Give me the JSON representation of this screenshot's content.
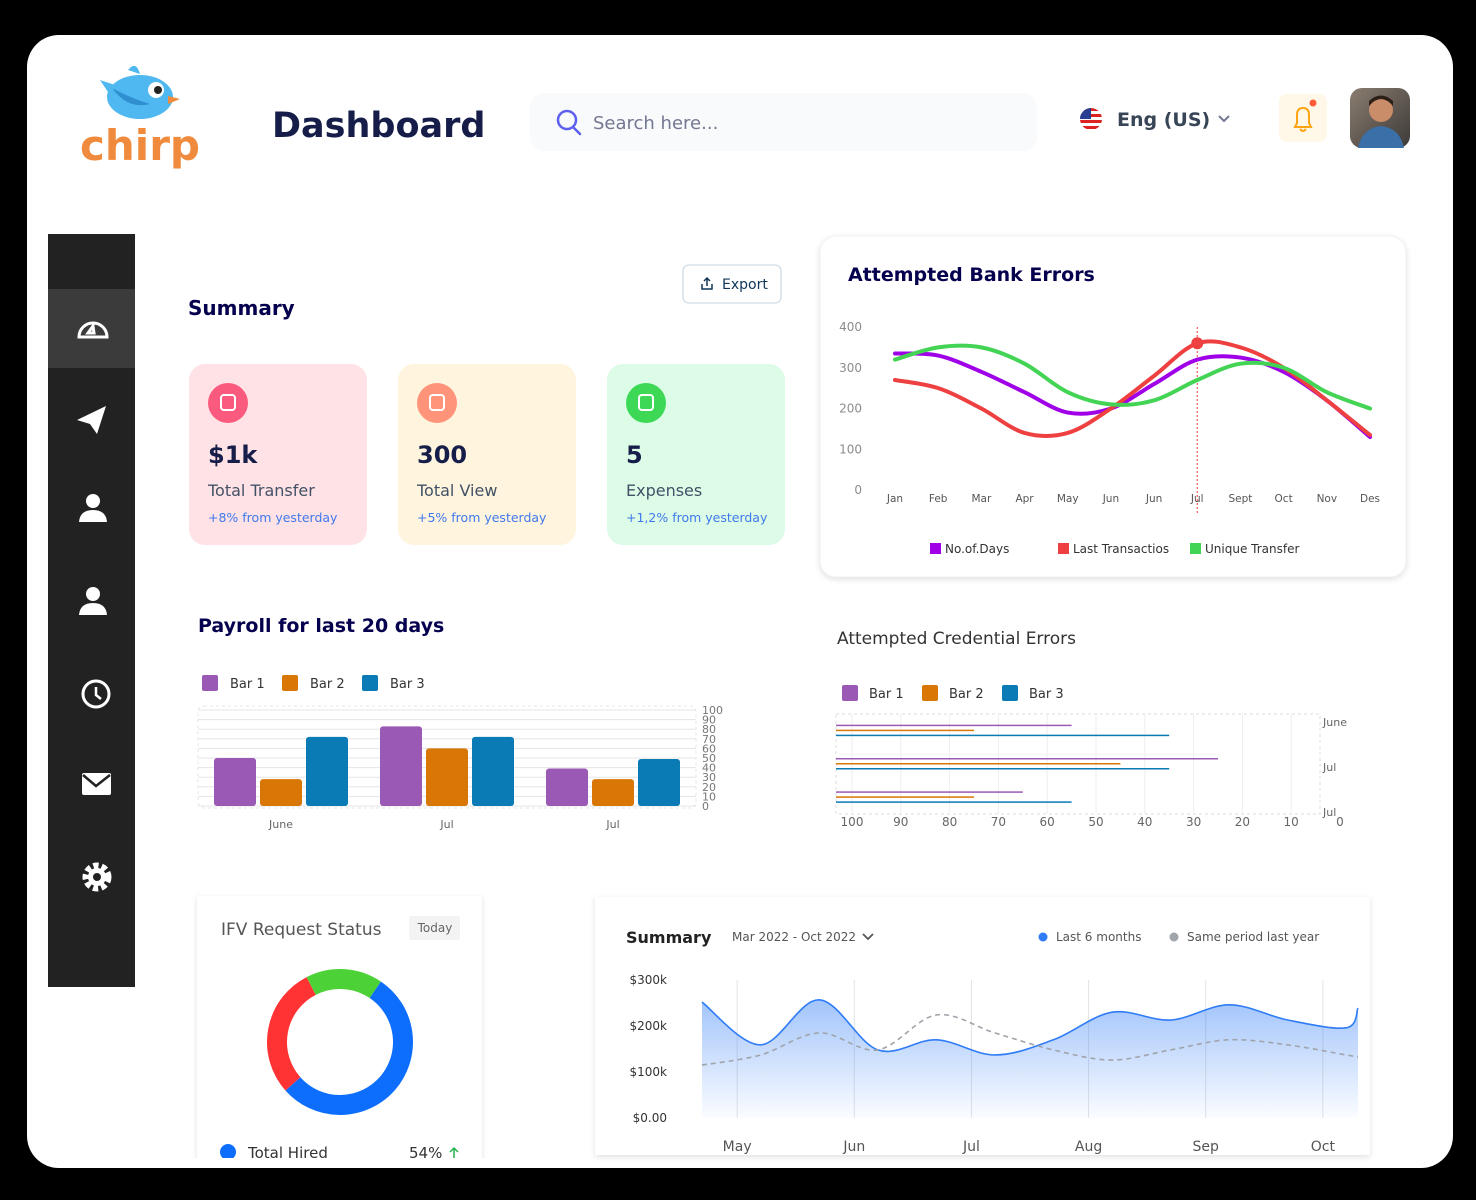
{
  "header": {
    "logo": "chirp",
    "title": "Dashboard",
    "search_placeholder": "Search here...",
    "language": "Eng (US)"
  },
  "summary": {
    "title": "Summary",
    "export": "Export",
    "cards": [
      {
        "value": "$1k",
        "label": "Total Transfer",
        "change": "+8% from yesterday"
      },
      {
        "value": "300",
        "label": "Total View",
        "change": "+5% from yesterday"
      },
      {
        "value": "5",
        "label": "Expenses",
        "change": "+1,2% from yesterday"
      }
    ]
  },
  "bank_errors": {
    "type": "line",
    "title": "Attempted Bank Errors",
    "categories": [
      "Jan",
      "Feb",
      "Mar",
      "Apr",
      "May",
      "Jun",
      "Jun",
      "Jul",
      "Sept",
      "Oct",
      "Nov",
      "Des"
    ],
    "ylim": [
      0,
      400
    ],
    "yticks": [
      0,
      100,
      200,
      300,
      400
    ],
    "series": [
      {
        "name": "No.of.Days",
        "color": "#a000e8",
        "values": [
          335,
          330,
          290,
          240,
          190,
          200,
          260,
          320,
          325,
          290,
          220,
          130
        ]
      },
      {
        "name": "Last Transactios",
        "color": "#ee4040",
        "values": [
          270,
          250,
          200,
          140,
          140,
          200,
          280,
          360,
          350,
          300,
          220,
          135
        ]
      },
      {
        "name": "Unique Transfer",
        "color": "#44d455",
        "values": [
          320,
          350,
          350,
          310,
          240,
          210,
          220,
          270,
          310,
          300,
          240,
          200
        ]
      }
    ],
    "highlight": {
      "series": 1,
      "index": 7
    }
  },
  "payroll": {
    "type": "bar",
    "title": "Payroll for last 20 days",
    "categories": [
      "June",
      "Jul",
      "Jul"
    ],
    "ylim": [
      0,
      100
    ],
    "yticks": [
      0,
      10,
      20,
      30,
      40,
      50,
      60,
      70,
      80,
      90,
      100
    ],
    "grid": true,
    "series": [
      {
        "name": "Bar 1",
        "color": "#9b59b6",
        "values": [
          50,
          83,
          39
        ]
      },
      {
        "name": "Bar 2",
        "color": "#d97706",
        "values": [
          28,
          60,
          28
        ]
      },
      {
        "name": "Bar 3",
        "color": "#0a7bb5",
        "values": [
          72,
          72,
          49
        ]
      }
    ]
  },
  "credential_errors": {
    "type": "hbar",
    "title": "Attempted Credential Errors",
    "categories": [
      "June",
      "Jul",
      "Jul"
    ],
    "xlim": [
      100,
      0
    ],
    "xticks": [
      100,
      90,
      80,
      70,
      60,
      50,
      40,
      30,
      20,
      10,
      0
    ],
    "grid": true,
    "series": [
      {
        "name": "Bar 1",
        "color": "#9b59b6",
        "values": [
          55,
          25,
          65
        ]
      },
      {
        "name": "Bar 2",
        "color": "#d97706",
        "values": [
          75,
          45,
          75
        ]
      },
      {
        "name": "Bar 3",
        "color": "#0a7bb5",
        "values": [
          35,
          35,
          55
        ]
      }
    ]
  },
  "ifv_status": {
    "type": "donut",
    "title": "IFV Request Status",
    "period": "Today",
    "categories": [
      "Total Hired",
      null,
      null
    ],
    "values": [
      54,
      29,
      17
    ],
    "value_labels": [
      "54%",
      null,
      null
    ],
    "colors": [
      "#0d6efd",
      "#ff3333",
      "#4cd137"
    ]
  },
  "summary_chart": {
    "type": "area",
    "title": "Summary",
    "period": "Mar 2022 - Oct 2022",
    "xlim": [
      4.7,
      10.3
    ],
    "xticks": [
      {
        "value": 5,
        "label": "May"
      },
      {
        "value": 6,
        "label": "Jun"
      },
      {
        "value": 7,
        "label": "Jul"
      },
      {
        "value": 8,
        "label": "Aug"
      },
      {
        "value": 9,
        "label": "Sep"
      },
      {
        "value": 10,
        "label": "Oct"
      }
    ],
    "ylim": [
      0,
      300000
    ],
    "yticks": [
      {
        "value": 0,
        "label": "$0.00"
      },
      {
        "value": 100000,
        "label": "$100k"
      },
      {
        "value": 200000,
        "label": "$200k"
      },
      {
        "value": 300000,
        "label": "$300k"
      }
    ],
    "x": [
      4.7,
      5.2,
      5.7,
      6.2,
      6.7,
      7.2,
      7.7,
      8.2,
      8.7,
      9.2,
      9.7,
      10.2,
      10.3
    ],
    "series": [
      {
        "name": "Last 6 months",
        "color": "#2f7cf6",
        "fill": true,
        "values": [
          252000,
          159000,
          257000,
          148000,
          170000,
          137000,
          170000,
          230000,
          213000,
          246000,
          213000,
          196000,
          239000
        ]
      },
      {
        "name": "Same period last year",
        "color": "#a0a4ab",
        "dash": true,
        "values": [
          115000,
          137000,
          185000,
          148000,
          224000,
          185000,
          148000,
          126000,
          148000,
          170000,
          159000,
          137000,
          133000
        ]
      }
    ]
  }
}
